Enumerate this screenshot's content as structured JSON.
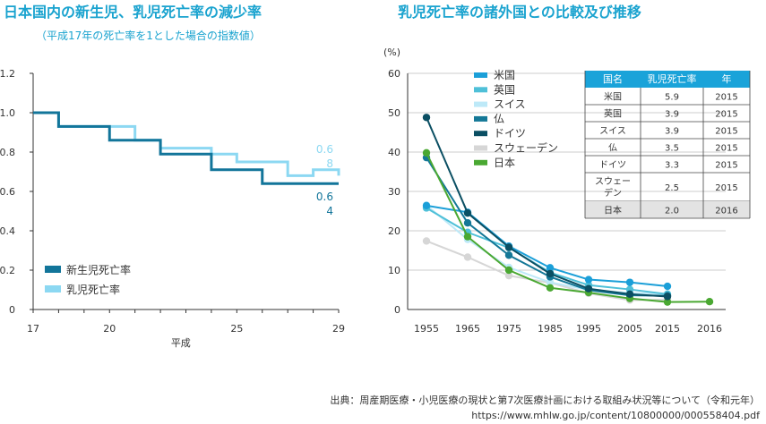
{
  "left_title": "日本国内の新生児、乳児死亡率の減少率",
  "left_subtitle": "（平成17年の死亡率を1とした場合の指数値）",
  "right_title": "乳児死亡率の諸外国との比較及び推移",
  "source_line1": "出典：周産期医療・小児医療の現状と第7次医療計画における取組み状況等について（令和元年）",
  "source_line2": "https://www.mhlw.go.jp/content/10800000/000558404.pdf",
  "colors": {
    "newborn": "#12759a",
    "infant": "#8cd8f2",
    "us": "#1b9fd8",
    "uk": "#4fc0d8",
    "swiss": "#bde9f8",
    "france": "#147897",
    "germany": "#0b4f63",
    "sweden": "#d6d6d6",
    "japan": "#4aa832",
    "table_header": "#1aa3d9"
  },
  "chart_data": [
    {
      "type": "line",
      "title": "日本国内の新生児、乳児死亡率の減少率",
      "subtitle": "（平成17年の死亡率を1とした場合の指数値）",
      "xlabel": "平成",
      "ylabel": "",
      "xlim": [
        17,
        29
      ],
      "ylim": [
        0,
        1.2
      ],
      "xticks": [
        "17",
        "20",
        "25",
        "29"
      ],
      "yticks": [
        "0",
        "0.2",
        "0.4",
        "0.6",
        "0.8",
        "1.0",
        "1.2"
      ],
      "step": true,
      "legend": "bottom-left",
      "series": [
        {
          "name": "新生児死亡率",
          "color_key": "newborn",
          "end_label": [
            "0.6",
            "4"
          ],
          "x": [
            17,
            18,
            19,
            20,
            21,
            22,
            23,
            24,
            25,
            26,
            27,
            28,
            29
          ],
          "values": [
            1.0,
            0.93,
            0.93,
            0.86,
            0.86,
            0.79,
            0.79,
            0.71,
            0.71,
            0.64,
            0.64,
            0.64,
            0.64
          ]
        },
        {
          "name": "乳児死亡率",
          "color_key": "infant",
          "end_label": [
            "0.6",
            "8"
          ],
          "x": [
            17,
            18,
            19,
            20,
            21,
            22,
            23,
            24,
            25,
            26,
            27,
            28,
            29
          ],
          "values": [
            1.0,
            0.93,
            0.93,
            0.93,
            0.86,
            0.82,
            0.82,
            0.79,
            0.75,
            0.75,
            0.68,
            0.71,
            0.68
          ]
        }
      ]
    },
    {
      "type": "line",
      "title": "乳児死亡率の諸外国との比較及び推移",
      "ylabel": "(%)",
      "ylim": [
        0,
        60
      ],
      "yticks": [
        "0",
        "10",
        "20",
        "30",
        "40",
        "50",
        "60"
      ],
      "categories": [
        "1955",
        "1965",
        "1975",
        "1985",
        "1995",
        "2005",
        "2015",
        "2016"
      ],
      "legend": "top-left",
      "series": [
        {
          "name": "米国",
          "color_key": "us",
          "values": [
            26.4,
            24.7,
            16.1,
            10.6,
            7.6,
            6.9,
            5.9,
            null
          ]
        },
        {
          "name": "英国",
          "color_key": "uk",
          "values": [
            25.8,
            19.6,
            15.7,
            9.4,
            6.2,
            5.1,
            3.9,
            null
          ]
        },
        {
          "name": "スイス",
          "color_key": "swiss",
          "values": [
            26.5,
            17.8,
            10.7,
            6.9,
            5.0,
            4.2,
            3.9,
            null
          ]
        },
        {
          "name": "仏",
          "color_key": "france",
          "values": [
            38.6,
            22.0,
            13.8,
            8.3,
            4.9,
            3.6,
            3.5,
            null
          ]
        },
        {
          "name": "ドイツ",
          "color_key": "germany",
          "values": [
            48.8,
            24.5,
            15.8,
            9.1,
            5.3,
            3.9,
            3.3,
            null
          ]
        },
        {
          "name": "スウェーデン",
          "color_key": "sweden",
          "values": [
            17.4,
            13.3,
            8.6,
            6.8,
            4.1,
            2.4,
            2.5,
            null
          ]
        },
        {
          "name": "日本",
          "color_key": "japan",
          "values": [
            39.8,
            18.5,
            10.0,
            5.5,
            4.3,
            2.8,
            1.9,
            2.0
          ]
        }
      ],
      "table": {
        "headers": [
          "国名",
          "乳児死亡率",
          "年"
        ],
        "rows": [
          [
            "米国",
            "5.9",
            "2015"
          ],
          [
            "英国",
            "3.9",
            "2015"
          ],
          [
            "スイス",
            "3.9",
            "2015"
          ],
          [
            "仏",
            "3.5",
            "2015"
          ],
          [
            "ドイツ",
            "3.3",
            "2015"
          ],
          [
            "スウェーデン",
            "2.5",
            "2015"
          ],
          [
            "日本",
            "2.0",
            "2016"
          ]
        ],
        "highlight_row": 6
      }
    }
  ]
}
